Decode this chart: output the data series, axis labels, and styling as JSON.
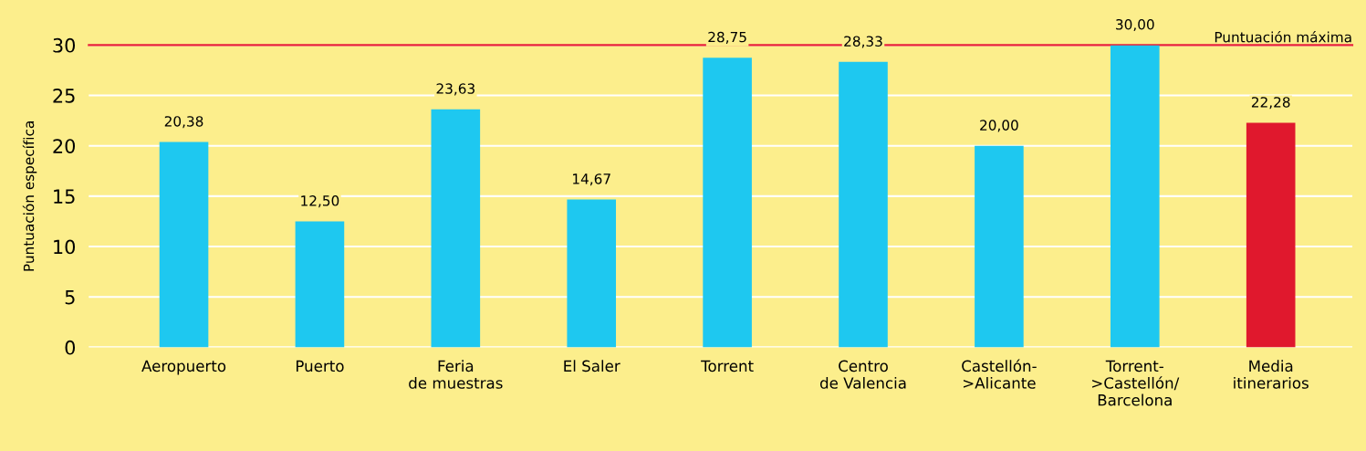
{
  "chart_data": {
    "type": "bar",
    "ylabel": "Puntuación específica",
    "categories": [
      "Aeropuerto",
      "Puerto",
      "Feria\nde muestras",
      "El Saler",
      "Torrent",
      "Centro\nde Valencia",
      "Castellón-\n>Alicante",
      "Torrent-\n>Castellón/\nBarcelona",
      "Media\nitinerarios"
    ],
    "values": [
      20.38,
      12.5,
      23.63,
      14.67,
      28.75,
      28.33,
      20.0,
      30.0,
      22.28
    ],
    "value_labels": [
      "20,38",
      "12,50",
      "23,63",
      "14,67",
      "28,75",
      "28,33",
      "20,00",
      "30,00",
      "22,28"
    ],
    "colors": [
      "#1ec8f0",
      "#1ec8f0",
      "#1ec8f0",
      "#1ec8f0",
      "#1ec8f0",
      "#1ec8f0",
      "#1ec8f0",
      "#1ec8f0",
      "#e0182d"
    ],
    "ylim": [
      0,
      30
    ],
    "yticks": [
      0,
      5,
      10,
      15,
      20,
      25,
      30
    ],
    "grid": "y",
    "ref_lines": [
      {
        "axis": "y",
        "value": 30,
        "label": "Puntuación máxima",
        "color": "#e8203a"
      }
    ]
  }
}
